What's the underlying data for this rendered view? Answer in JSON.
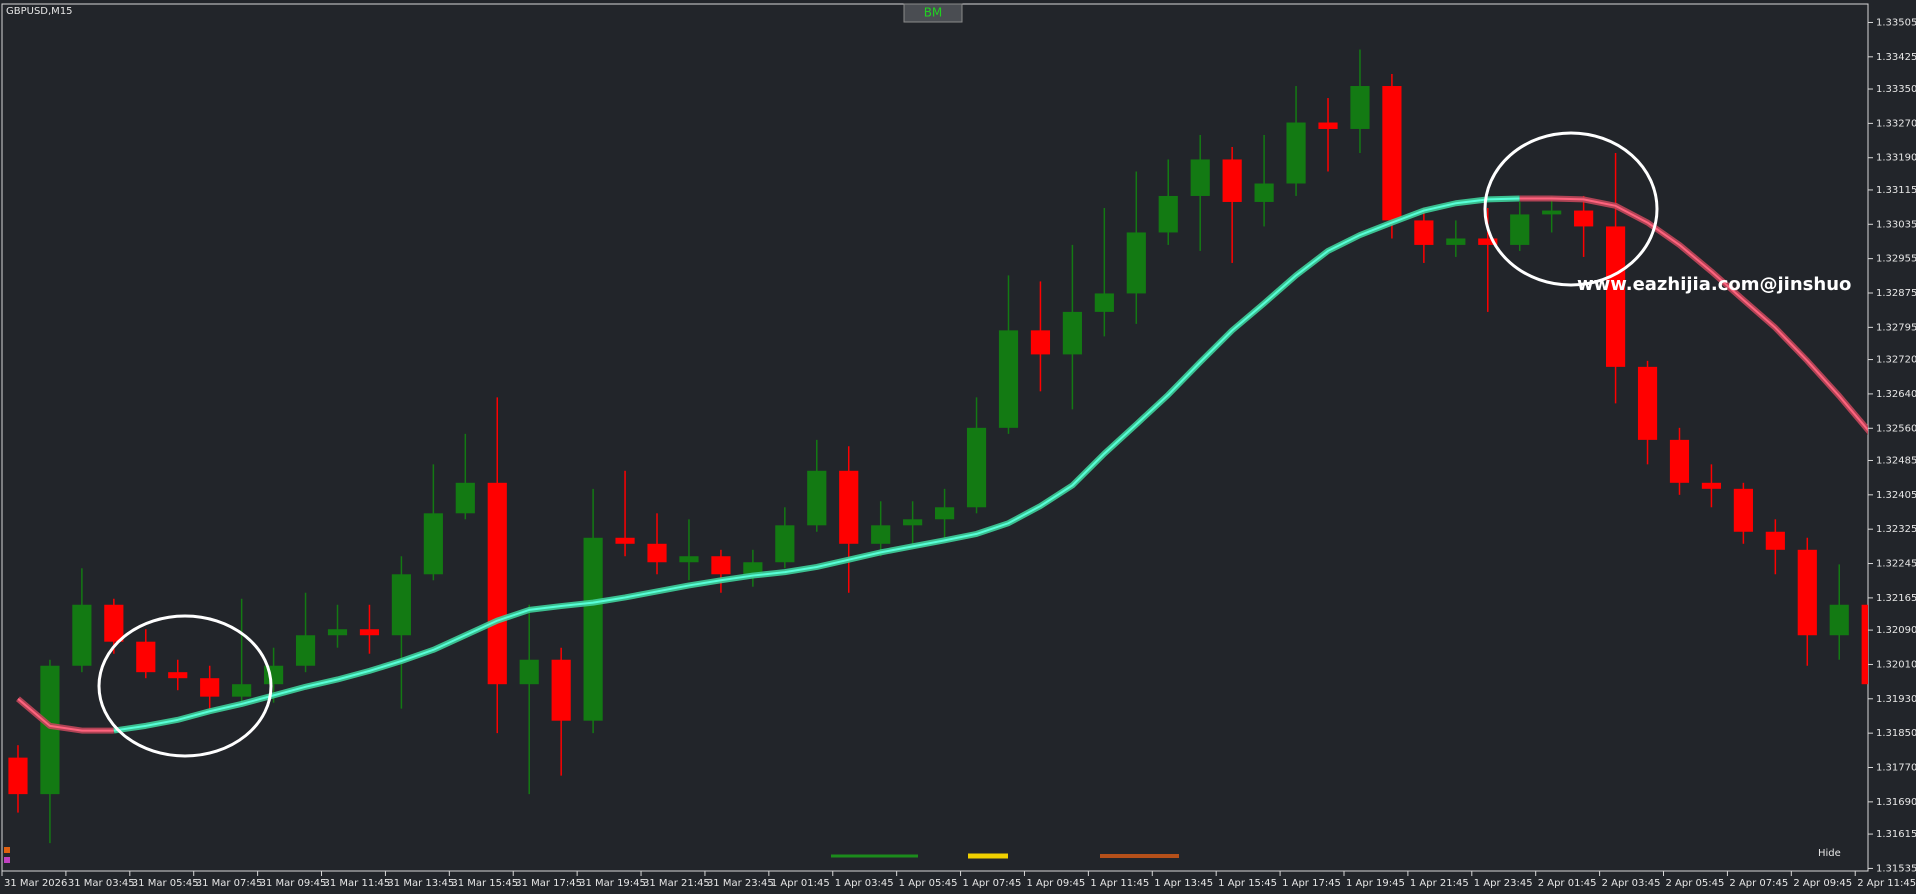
{
  "chart_data": {
    "type": "candlestick",
    "title": "GBPUSD,M15",
    "button_label": "BM",
    "watermark": "www.eazhijia.com@jinshuo",
    "hide_label": "Hide",
    "up_color": "#137a13",
    "down_color": "#ff0000",
    "open": [
      1.31793,
      1.31708,
      1.32007,
      1.32149,
      1.32063,
      1.31992,
      1.31978,
      1.31935,
      1.31964,
      1.32007,
      1.32078,
      1.32092,
      1.32078,
      1.3222,
      1.32362,
      1.32433,
      1.31964,
      1.32021,
      1.31879,
      1.32305,
      1.32291,
      1.32248,
      1.32262,
      1.3222,
      1.32248,
      1.32334,
      1.32461,
      1.32291,
      1.32334,
      1.32348,
      1.32376,
      1.32561,
      1.32788,
      1.32732,
      1.32831,
      1.32874,
      1.33016,
      1.33101,
      1.33186,
      1.33087,
      1.3313,
      1.33272,
      1.33257,
      1.33357,
      1.33044,
      1.32987,
      1.33002,
      1.32987,
      1.33058,
      1.33067,
      1.3303,
      1.32703,
      1.32533,
      1.32433,
      1.32419,
      1.32319,
      1.32277,
      1.32078,
      1.32149
    ],
    "high": [
      1.31822,
      1.32021,
      1.32234,
      1.32163,
      1.32092,
      1.32021,
      1.32007,
      1.32163,
      1.32049,
      1.32177,
      1.32149,
      1.32149,
      1.32262,
      1.32476,
      1.32547,
      1.32632,
      1.32149,
      1.32049,
      1.32419,
      1.32461,
      1.32362,
      1.32348,
      1.32277,
      1.32277,
      1.32376,
      1.32533,
      1.32518,
      1.3239,
      1.3239,
      1.32419,
      1.32632,
      1.32916,
      1.32902,
      1.32987,
      1.33073,
      1.33158,
      1.33186,
      1.33243,
      1.33215,
      1.33243,
      1.33357,
      1.33329,
      1.33442,
      1.33385,
      1.33073,
      1.33044,
      1.33073,
      1.33087,
      1.33101,
      1.33101,
      1.33201,
      1.32717,
      1.32561,
      1.32476,
      1.32433,
      1.32348,
      1.32305,
      1.32243,
      1.32163
    ],
    "low": [
      1.31665,
      1.31594,
      1.31992,
      1.32035,
      1.31978,
      1.3195,
      1.31907,
      1.31921,
      1.31921,
      1.31992,
      1.32049,
      1.32035,
      1.31907,
      1.32206,
      1.32348,
      1.3185,
      1.31708,
      1.31751,
      1.3185,
      1.32262,
      1.3222,
      1.32206,
      1.32177,
      1.32191,
      1.32234,
      1.32319,
      1.32177,
      1.32262,
      1.32291,
      1.32305,
      1.32362,
      1.32547,
      1.32646,
      1.32604,
      1.32774,
      1.32803,
      1.32987,
      1.32973,
      1.32945,
      1.3303,
      1.33101,
      1.33158,
      1.33201,
      1.33002,
      1.32945,
      1.32959,
      1.32831,
      1.32973,
      1.33016,
      1.32959,
      1.32618,
      1.32476,
      1.32405,
      1.32376,
      1.32291,
      1.3222,
      1.32007,
      1.32021,
      1.31935
    ],
    "close": [
      1.31708,
      1.32007,
      1.32149,
      1.32063,
      1.31992,
      1.31978,
      1.31935,
      1.31964,
      1.32007,
      1.32078,
      1.32092,
      1.32078,
      1.3222,
      1.32362,
      1.32433,
      1.31964,
      1.32021,
      1.31879,
      1.32305,
      1.32291,
      1.32248,
      1.32262,
      1.3222,
      1.32248,
      1.32334,
      1.32461,
      1.32291,
      1.32334,
      1.32348,
      1.32376,
      1.32561,
      1.32788,
      1.32732,
      1.32831,
      1.32874,
      1.33016,
      1.33101,
      1.33186,
      1.33087,
      1.3313,
      1.33272,
      1.33257,
      1.33357,
      1.33044,
      1.32987,
      1.33002,
      1.32987,
      1.33058,
      1.33067,
      1.3303,
      1.32703,
      1.32533,
      1.32433,
      1.32419,
      1.32319,
      1.32277,
      1.32078,
      1.32149,
      1.31964
    ],
    "moving_average": {
      "up_color": "#3ecf9a",
      "down_color": "#c0475a",
      "values": [
        1.3193,
        1.31867,
        1.31856,
        1.31856,
        1.31867,
        1.31881,
        1.31901,
        1.31918,
        1.31938,
        1.31958,
        1.31975,
        1.31995,
        1.32018,
        1.32044,
        1.32078,
        1.32112,
        1.32137,
        1.32146,
        1.32154,
        1.32166,
        1.3218,
        1.32194,
        1.32206,
        1.32217,
        1.32225,
        1.32237,
        1.32254,
        1.32271,
        1.32285,
        1.32299,
        1.32314,
        1.32339,
        1.32379,
        1.32427,
        1.32501,
        1.32569,
        1.32638,
        1.32714,
        1.32788,
        1.32851,
        1.32916,
        1.32973,
        1.3301,
        1.33039,
        1.33067,
        1.33084,
        1.33093,
        1.33095,
        1.33095,
        1.33093,
        1.33078,
        1.33039,
        1.32987,
        1.32925,
        1.32859,
        1.32794,
        1.32717,
        1.32635,
        1.32547
      ]
    },
    "xlim": [
      0,
      58.4
    ],
    "xticks": [
      {
        "value": 0,
        "label": "31 Mar 2026"
      },
      {
        "value": 2,
        "label": "31 Mar 03:45"
      },
      {
        "value": 4,
        "label": "31 Mar 05:45"
      },
      {
        "value": 6,
        "label": "31 Mar 07:45"
      },
      {
        "value": 8,
        "label": "31 Mar 09:45"
      },
      {
        "value": 10,
        "label": "31 Mar 11:45"
      },
      {
        "value": 12,
        "label": "31 Mar 13:45"
      },
      {
        "value": 14,
        "label": "31 Mar 15:45"
      },
      {
        "value": 16,
        "label": "31 Mar 17:45"
      },
      {
        "value": 18,
        "label": "31 Mar 19:45"
      },
      {
        "value": 20,
        "label": "31 Mar 21:45"
      },
      {
        "value": 22,
        "label": "31 Mar 23:45"
      },
      {
        "value": 24,
        "label": "1 Apr 01:45"
      },
      {
        "value": 26,
        "label": "1 Apr 03:45"
      },
      {
        "value": 28,
        "label": "1 Apr 05:45"
      },
      {
        "value": 30,
        "label": "1 Apr 07:45"
      },
      {
        "value": 32,
        "label": "1 Apr 09:45"
      },
      {
        "value": 34,
        "label": "1 Apr 11:45"
      },
      {
        "value": 36,
        "label": "1 Apr 13:45"
      },
      {
        "value": 38,
        "label": "1 Apr 15:45"
      },
      {
        "value": 40,
        "label": "1 Apr 17:45"
      },
      {
        "value": 42,
        "label": "1 Apr 19:45"
      },
      {
        "value": 44,
        "label": "1 Apr 21:45"
      },
      {
        "value": 46,
        "label": "1 Apr 23:45"
      },
      {
        "value": 48,
        "label": "2 Apr 01:45"
      },
      {
        "value": 50,
        "label": "2 Apr 03:45"
      },
      {
        "value": 52,
        "label": "2 Apr 05:45"
      },
      {
        "value": 54,
        "label": "2 Apr 07:45"
      },
      {
        "value": 56,
        "label": "2 Apr 09:45"
      },
      {
        "value": 58,
        "label": "2 Apr 11:45"
      }
    ],
    "ylim": [
      1.31529,
      1.33548
    ],
    "yticks": [
      1.33505,
      1.33425,
      {
        "value": 1.3335,
        "label": "1.33350"
      },
      {
        "value": 1.3327,
        "label": "1.33270"
      },
      {
        "value": 1.3319,
        "label": "1.33190"
      },
      1.33115,
      1.33035,
      1.32955,
      1.32875,
      1.32795,
      {
        "value": 1.3272,
        "label": "1.32720"
      },
      {
        "value": 1.3264,
        "label": "1.32640"
      },
      {
        "value": 1.3256,
        "label": "1.32560"
      },
      1.32485,
      1.32405,
      1.32325,
      1.32245,
      1.32165,
      {
        "value": 1.3209,
        "label": "1.32090"
      },
      {
        "value": 1.3201,
        "label": "1.32010"
      },
      {
        "value": 1.3193,
        "label": "1.31930"
      },
      {
        "value": 1.3185,
        "label": "1.31850"
      },
      {
        "value": 1.3177,
        "label": "1.31770"
      },
      {
        "value": 1.3169,
        "label": "1.31690"
      },
      1.31615,
      1.31535
    ],
    "grid": false
  }
}
